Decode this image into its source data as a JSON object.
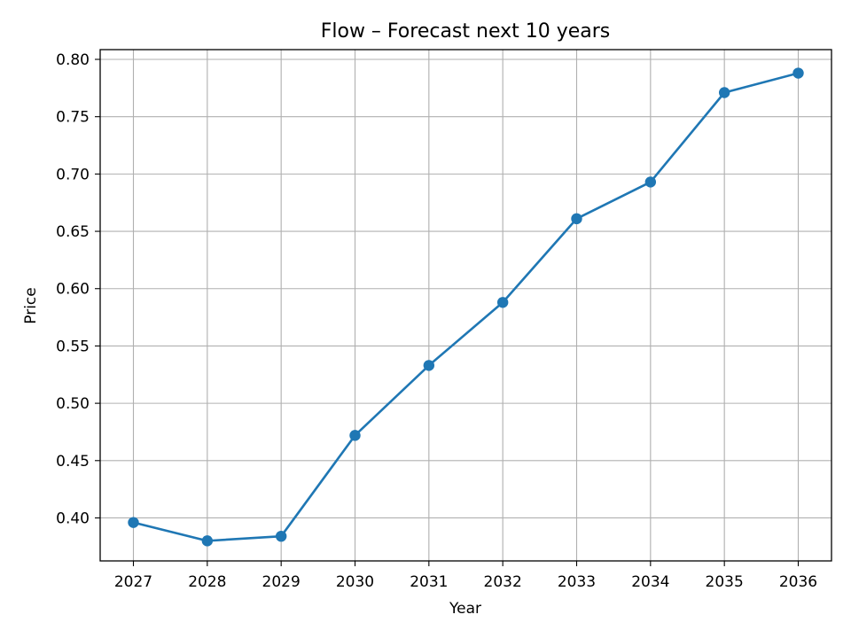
{
  "chart_data": {
    "type": "line",
    "title": "Flow – Forecast next 10 years",
    "xlabel": "Year",
    "ylabel": "Price",
    "x": [
      "2027",
      "2028",
      "2029",
      "2030",
      "2031",
      "2032",
      "2033",
      "2034",
      "2035",
      "2036"
    ],
    "series": [
      {
        "values": [
          0.396,
          0.38,
          0.384,
          0.472,
          0.533,
          0.588,
          0.661,
          0.693,
          0.771,
          0.788
        ],
        "color": "#1f77b4",
        "marker": "circle"
      }
    ],
    "y_ticks": [
      "0.40",
      "0.45",
      "0.50",
      "0.55",
      "0.60",
      "0.65",
      "0.70",
      "0.75",
      "0.80"
    ],
    "xlim": [
      2026.55,
      2036.45
    ],
    "ylim": [
      0.3625,
      0.8085
    ],
    "grid": true,
    "legend": "none"
  }
}
